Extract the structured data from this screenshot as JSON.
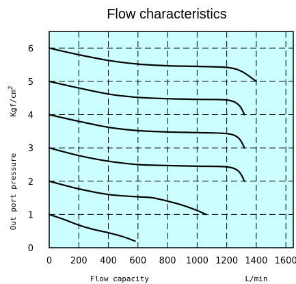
{
  "chart_data": {
    "type": "line",
    "title": "Flow characteristics",
    "xlabel": "Flow capacity",
    "x_unit": "L/min",
    "ylabel_main": "Out port pressure",
    "ylabel_unit_base": "Kgf/cm",
    "ylabel_unit_exp": "2",
    "xlim": [
      0,
      1650
    ],
    "ylim": [
      0,
      6.5
    ],
    "x_ticks": [
      0,
      200,
      400,
      600,
      800,
      1000,
      1200,
      1400,
      1600
    ],
    "y_ticks": [
      0,
      1,
      2,
      3,
      4,
      5,
      6
    ],
    "grid": true,
    "plot_background": "#ccffff",
    "series": [
      {
        "values": [
          [
            0,
            6.0
          ],
          [
            200,
            5.8
          ],
          [
            400,
            5.63
          ],
          [
            600,
            5.52
          ],
          [
            800,
            5.47
          ],
          [
            1000,
            5.45
          ],
          [
            1200,
            5.42
          ],
          [
            1300,
            5.3
          ],
          [
            1400,
            5.0
          ]
        ]
      },
      {
        "values": [
          [
            0,
            5.0
          ],
          [
            200,
            4.8
          ],
          [
            400,
            4.62
          ],
          [
            600,
            4.52
          ],
          [
            800,
            4.48
          ],
          [
            1000,
            4.46
          ],
          [
            1200,
            4.44
          ],
          [
            1280,
            4.3
          ],
          [
            1320,
            4.0
          ]
        ]
      },
      {
        "values": [
          [
            0,
            4.0
          ],
          [
            200,
            3.8
          ],
          [
            400,
            3.62
          ],
          [
            600,
            3.52
          ],
          [
            800,
            3.48
          ],
          [
            1000,
            3.46
          ],
          [
            1200,
            3.43
          ],
          [
            1280,
            3.3
          ],
          [
            1320,
            3.0
          ]
        ]
      },
      {
        "values": [
          [
            0,
            3.0
          ],
          [
            200,
            2.77
          ],
          [
            400,
            2.6
          ],
          [
            600,
            2.5
          ],
          [
            800,
            2.47
          ],
          [
            1000,
            2.45
          ],
          [
            1200,
            2.43
          ],
          [
            1280,
            2.3
          ],
          [
            1320,
            2.0
          ]
        ]
      },
      {
        "values": [
          [
            0,
            2.0
          ],
          [
            200,
            1.77
          ],
          [
            400,
            1.6
          ],
          [
            600,
            1.53
          ],
          [
            700,
            1.5
          ],
          [
            800,
            1.4
          ],
          [
            900,
            1.28
          ],
          [
            1000,
            1.12
          ],
          [
            1060,
            1.0
          ]
        ]
      },
      {
        "values": [
          [
            0,
            1.0
          ],
          [
            100,
            0.85
          ],
          [
            200,
            0.68
          ],
          [
            300,
            0.55
          ],
          [
            400,
            0.45
          ],
          [
            500,
            0.33
          ],
          [
            580,
            0.2
          ]
        ]
      }
    ]
  }
}
